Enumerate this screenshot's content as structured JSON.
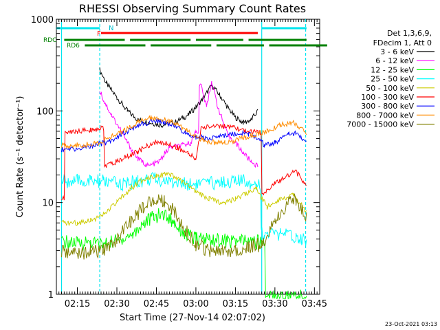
{
  "chart_data": {
    "type": "line",
    "title": "RHESSI Observing Summary Count Rates",
    "xlabel": "Start Time (27-Nov-14 02:07:02)",
    "ylabel": "Count Rate (s⁻¹ detector⁻¹)",
    "y_scale": "log",
    "ylim": [
      1,
      1000
    ],
    "xlim": [
      "02:07:02",
      "03:47:00"
    ],
    "x_ticks": [
      "02:15",
      "02:30",
      "02:45",
      "03:00",
      "03:15",
      "03:30",
      "03:45"
    ],
    "y_ticks": [
      "1",
      "10",
      "100",
      "1000"
    ],
    "grid": false,
    "legend_position": "right",
    "legend_header": [
      "Det 1,3,6,9,",
      "FDecim 1, Att 0"
    ],
    "footer_date": "23-Oct-2021 03:13",
    "flags": {
      "N_label": "N",
      "F_label": "F",
      "RDC_label": "RDC",
      "RD6_label": "RD6",
      "N_intervals": [
        [
          "02:07:02",
          "02:23:30"
        ],
        [
          "03:25:00",
          "03:42:00"
        ]
      ],
      "F_interval": [
        "02:24:00",
        "03:23:30"
      ],
      "RDC_intervals": [
        [
          "02:10:00",
          "02:33:00"
        ],
        [
          "02:35:00",
          "02:58:00"
        ],
        [
          "03:00:00",
          "03:18:00"
        ],
        [
          "03:20:00",
          "03:42:00"
        ]
      ],
      "night_boundaries": [
        "02:09:00",
        "02:23:30",
        "03:25:00",
        "03:41:40"
      ]
    },
    "series": [
      {
        "name": "3 - 6 keV",
        "color": "#000000",
        "points": [
          [
            "02:23:30",
            280
          ],
          [
            "02:26:00",
            200
          ],
          [
            "02:30:00",
            140
          ],
          [
            "02:34:00",
            100
          ],
          [
            "02:38:00",
            80
          ],
          [
            "02:42:00",
            75
          ],
          [
            "02:47:00",
            70
          ],
          [
            "02:52:00",
            75
          ],
          [
            "02:57:00",
            90
          ],
          [
            "03:00:00",
            110
          ],
          [
            "03:03:00",
            140
          ],
          [
            "03:06:00",
            190
          ],
          [
            "03:09:00",
            150
          ],
          [
            "03:12:00",
            110
          ],
          [
            "03:15:00",
            85
          ],
          [
            "03:18:00",
            75
          ],
          [
            "03:21:00",
            80
          ],
          [
            "03:23:30",
            100
          ]
        ]
      },
      {
        "name": "6 - 12 keV",
        "color": "#ff00ff",
        "points": [
          [
            "02:23:30",
            170
          ],
          [
            "02:25:00",
            130
          ],
          [
            "02:28:00",
            90
          ],
          [
            "02:31:00",
            65
          ],
          [
            "02:34:00",
            45
          ],
          [
            "02:38:00",
            30
          ],
          [
            "02:42:00",
            25
          ],
          [
            "02:46:00",
            28
          ],
          [
            "02:50:00",
            40
          ],
          [
            "02:55:00",
            42
          ],
          [
            "02:58:00",
            45
          ],
          [
            "03:00:00",
            60
          ],
          [
            "03:02:00",
            190
          ],
          [
            "03:04:00",
            110
          ],
          [
            "03:06:00",
            210
          ],
          [
            "03:08:00",
            120
          ],
          [
            "03:10:00",
            80
          ],
          [
            "03:12:00",
            55
          ],
          [
            "03:15:00",
            45
          ],
          [
            "03:18:00",
            35
          ],
          [
            "03:21:00",
            28
          ],
          [
            "03:23:30",
            25
          ]
        ]
      },
      {
        "name": "12 - 25 keV",
        "color": "#00ff00",
        "points": [
          [
            "02:09:00",
            3.7
          ],
          [
            "02:15:00",
            3.6
          ],
          [
            "02:20:00",
            3.7
          ],
          [
            "02:25:00",
            3.5
          ],
          [
            "02:32:00",
            4
          ],
          [
            "02:36:00",
            4.5
          ],
          [
            "02:40:00",
            6
          ],
          [
            "02:44:00",
            7
          ],
          [
            "02:48:00",
            7.5
          ],
          [
            "02:52:00",
            6
          ],
          [
            "02:56:00",
            4.5
          ],
          [
            "03:00:00",
            4
          ],
          [
            "03:05:00",
            4
          ],
          [
            "03:12:00",
            3.8
          ],
          [
            "03:18:00",
            3.8
          ],
          [
            "03:24:00",
            3.7
          ],
          [
            "03:28:00",
            0.95
          ],
          [
            "03:35:00",
            0.95
          ],
          [
            "03:42:00",
            0.95
          ]
        ]
      },
      {
        "name": "25 - 50 keV",
        "color": "#00ffff",
        "points": [
          [
            "02:09:00",
            17
          ],
          [
            "02:15:00",
            17
          ],
          [
            "02:20:00",
            17
          ],
          [
            "02:25:00",
            17
          ],
          [
            "02:30:00",
            16
          ],
          [
            "02:34:00",
            16
          ],
          [
            "02:38:00",
            17
          ],
          [
            "02:42:00",
            18
          ],
          [
            "02:46:00",
            18
          ],
          [
            "02:50:00",
            17
          ],
          [
            "02:55:00",
            16
          ],
          [
            "03:00:00",
            16
          ],
          [
            "03:05:00",
            16
          ],
          [
            "03:10:00",
            17
          ],
          [
            "03:15:00",
            17
          ],
          [
            "03:20:00",
            17
          ],
          [
            "03:23:00",
            16
          ],
          [
            "03:26:00",
            4.5
          ],
          [
            "03:32:00",
            4.5
          ],
          [
            "03:38:00",
            4.2
          ],
          [
            "03:42:00",
            4
          ]
        ]
      },
      {
        "name": "50 - 100 keV",
        "color": "#cccc00",
        "points": [
          [
            "02:09:00",
            6
          ],
          [
            "02:15:00",
            6
          ],
          [
            "02:20:00",
            6.5
          ],
          [
            "02:24:00",
            7
          ],
          [
            "02:30:00",
            10
          ],
          [
            "02:35:00",
            14
          ],
          [
            "02:40:00",
            18
          ],
          [
            "02:45:00",
            20
          ],
          [
            "02:50:00",
            20
          ],
          [
            "02:55:00",
            17
          ],
          [
            "03:00:00",
            13
          ],
          [
            "03:05:00",
            11
          ],
          [
            "03:10:00",
            10
          ],
          [
            "03:15:00",
            11
          ],
          [
            "03:20:00",
            13
          ],
          [
            "03:23:00",
            14
          ],
          [
            "03:27:00",
            9
          ],
          [
            "03:32:00",
            11
          ],
          [
            "03:37:00",
            12
          ],
          [
            "03:42:00",
            8
          ]
        ]
      },
      {
        "name": "100 - 300 keV",
        "color": "#ff0000",
        "points": [
          [
            "02:09:00",
            11
          ],
          [
            "02:11:00",
            58
          ],
          [
            "02:15:00",
            60
          ],
          [
            "02:20:00",
            62
          ],
          [
            "02:24:00",
            65
          ],
          [
            "02:26:00",
            25
          ],
          [
            "02:30:00",
            28
          ],
          [
            "02:34:00",
            32
          ],
          [
            "02:38:00",
            36
          ],
          [
            "02:42:00",
            42
          ],
          [
            "02:45:00",
            45
          ],
          [
            "02:49:00",
            44
          ],
          [
            "02:53:00",
            40
          ],
          [
            "02:57:00",
            34
          ],
          [
            "03:00:00",
            30
          ],
          [
            "03:02:00",
            65
          ],
          [
            "03:08:00",
            70
          ],
          [
            "03:14:00",
            65
          ],
          [
            "03:20:00",
            60
          ],
          [
            "03:23:30",
            58
          ],
          [
            "03:26:00",
            13
          ],
          [
            "03:30:00",
            16
          ],
          [
            "03:35:00",
            20
          ],
          [
            "03:38:00",
            22
          ],
          [
            "03:42:00",
            15
          ]
        ]
      },
      {
        "name": "300 - 800 keV",
        "color": "#0000ff",
        "points": [
          [
            "02:09:00",
            38
          ],
          [
            "02:14:00",
            38
          ],
          [
            "02:18:00",
            40
          ],
          [
            "02:22:00",
            43
          ],
          [
            "02:26:00",
            45
          ],
          [
            "02:30:00",
            52
          ],
          [
            "02:35:00",
            62
          ],
          [
            "02:40:00",
            72
          ],
          [
            "02:44:00",
            78
          ],
          [
            "02:48:00",
            76
          ],
          [
            "02:52:00",
            68
          ],
          [
            "02:56:00",
            58
          ],
          [
            "03:00:00",
            52
          ],
          [
            "03:04:00",
            50
          ],
          [
            "03:08:00",
            52
          ],
          [
            "03:12:00",
            55
          ],
          [
            "03:16:00",
            57
          ],
          [
            "03:20:00",
            56
          ],
          [
            "03:24:00",
            50
          ],
          [
            "03:26:00",
            42
          ],
          [
            "03:30:00",
            45
          ],
          [
            "03:35:00",
            55
          ],
          [
            "03:38:00",
            58
          ],
          [
            "03:42:00",
            44
          ]
        ]
      },
      {
        "name": "800 - 7000 keV",
        "color": "#ff8c00",
        "points": [
          [
            "02:09:00",
            42
          ],
          [
            "02:14:00",
            42
          ],
          [
            "02:19:00",
            43
          ],
          [
            "02:23:00",
            45
          ],
          [
            "02:28:00",
            52
          ],
          [
            "02:33:00",
            62
          ],
          [
            "02:38:00",
            75
          ],
          [
            "02:43:00",
            85
          ],
          [
            "02:47:00",
            82
          ],
          [
            "02:51:00",
            75
          ],
          [
            "02:55:00",
            65
          ],
          [
            "02:59:00",
            55
          ],
          [
            "03:03:00",
            48
          ],
          [
            "03:07:00",
            45
          ],
          [
            "03:11:00",
            45
          ],
          [
            "03:15:00",
            48
          ],
          [
            "03:19:00",
            52
          ],
          [
            "03:23:00",
            56
          ],
          [
            "03:27:00",
            60
          ],
          [
            "03:32:00",
            70
          ],
          [
            "03:37:00",
            75
          ],
          [
            "03:42:00",
            58
          ]
        ]
      },
      {
        "name": "7000 - 15000 keV",
        "color": "#808000",
        "points": [
          [
            "02:09:00",
            2.9
          ],
          [
            "02:15:00",
            2.8
          ],
          [
            "02:20:00",
            2.9
          ],
          [
            "02:25:00",
            3
          ],
          [
            "02:30:00",
            4
          ],
          [
            "02:35:00",
            6
          ],
          [
            "02:40:00",
            9
          ],
          [
            "02:44:00",
            11
          ],
          [
            "02:48:00",
            10.5
          ],
          [
            "02:52:00",
            8
          ],
          [
            "02:56:00",
            5
          ],
          [
            "03:00:00",
            3.5
          ],
          [
            "03:05:00",
            3
          ],
          [
            "03:10:00",
            2.9
          ],
          [
            "03:15:00",
            3.1
          ],
          [
            "03:20:00",
            3.3
          ],
          [
            "03:25:00",
            3.5
          ],
          [
            "03:30:00",
            6
          ],
          [
            "03:35:00",
            10
          ],
          [
            "03:38:00",
            11
          ],
          [
            "03:42:00",
            7
          ]
        ]
      }
    ]
  }
}
